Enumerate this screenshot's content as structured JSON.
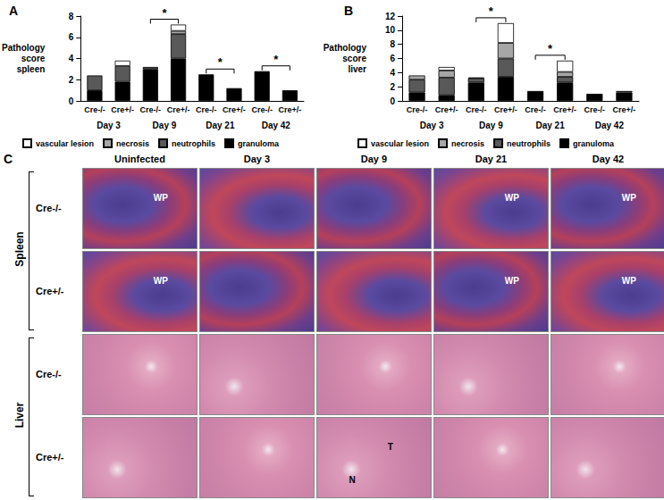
{
  "chart_data": [
    {
      "type": "bar",
      "panel_label": "A",
      "stacked": true,
      "grid": false,
      "legend": "bottom",
      "ylabel": "Pathology score spleen",
      "categories": [
        "Cre-/-",
        "Cre+/-",
        "Cre-/-",
        "Cre+/-",
        "Cre-/-",
        "Cre+/-",
        "Cre-/-",
        "Cre+/-"
      ],
      "groups": [
        "Day 3",
        "Day 9",
        "Day 21",
        "Day 42"
      ],
      "ylim": [
        0,
        8
      ],
      "yticks": [
        0,
        2,
        4,
        6,
        8
      ],
      "series": [
        {
          "name": "granuloma",
          "color": "#000000",
          "values": [
            1.0,
            1.8,
            3.0,
            4.0,
            2.5,
            1.2,
            2.8,
            1.0
          ]
        },
        {
          "name": "neutrophils",
          "color": "#595959",
          "values": [
            1.4,
            1.5,
            0.2,
            2.3,
            0,
            0,
            0,
            0
          ]
        },
        {
          "name": "necrosis",
          "color": "#a6a6a6",
          "values": [
            0,
            0,
            0,
            0.3,
            0,
            0,
            0,
            0
          ]
        },
        {
          "name": "vascular lesion",
          "color": "#ffffff",
          "values": [
            0,
            0.5,
            0,
            0.6,
            0,
            0,
            0,
            0
          ]
        }
      ],
      "significance": [
        {
          "group": "Day 9",
          "label": "*"
        },
        {
          "group": "Day 21",
          "label": "*"
        },
        {
          "group": "Day 42",
          "label": "*"
        }
      ]
    },
    {
      "type": "bar",
      "panel_label": "B",
      "stacked": true,
      "grid": false,
      "legend": "bottom",
      "ylabel": "Pathology score liver",
      "categories": [
        "Cre-/-",
        "Cre+/-",
        "Cre-/-",
        "Cre+/-",
        "Cre-/-",
        "Cre+/-",
        "Cre-/-",
        "Cre+/-"
      ],
      "groups": [
        "Day 3",
        "Day 9",
        "Day 21",
        "Day 42"
      ],
      "ylim": [
        0,
        12
      ],
      "yticks": [
        0,
        2,
        4,
        6,
        8,
        10,
        12
      ],
      "series": [
        {
          "name": "granuloma",
          "color": "#000000",
          "values": [
            1.2,
            0.8,
            2.6,
            3.4,
            1.4,
            2.6,
            1.0,
            1.2
          ]
        },
        {
          "name": "neutrophils",
          "color": "#595959",
          "values": [
            1.8,
            2.5,
            0.6,
            2.6,
            0,
            0.8,
            0,
            0.2
          ]
        },
        {
          "name": "necrosis",
          "color": "#a6a6a6",
          "values": [
            0.6,
            1.0,
            0.1,
            2.2,
            0,
            0.7,
            0,
            0
          ]
        },
        {
          "name": "vascular lesion",
          "color": "#ffffff",
          "values": [
            0,
            0.5,
            0,
            2.8,
            0,
            1.6,
            0,
            0
          ]
        }
      ],
      "significance": [
        {
          "group": "Day 9",
          "label": "*"
        },
        {
          "group": "Day 21",
          "label": "*"
        }
      ]
    }
  ],
  "panel_c": {
    "panel_label": "C",
    "columns": [
      "Uninfected",
      "Day 3",
      "Day 9",
      "Day 21",
      "Day 42"
    ],
    "organs": [
      {
        "name": "Spleen",
        "rows": [
          "Cre-/-",
          "Cre+/-"
        ]
      },
      {
        "name": "Liver",
        "rows": [
          "Cre-/-",
          "Cre+/-"
        ]
      }
    ],
    "annotations": [
      {
        "organ": 0,
        "row": 0,
        "column": 0,
        "text": "WP"
      },
      {
        "organ": 0,
        "row": 0,
        "column": 3,
        "text": "WP"
      },
      {
        "organ": 0,
        "row": 0,
        "column": 4,
        "text": "WP"
      },
      {
        "organ": 0,
        "row": 1,
        "column": 0,
        "text": "WP"
      },
      {
        "organ": 0,
        "row": 1,
        "column": 3,
        "text": "WP"
      },
      {
        "organ": 0,
        "row": 1,
        "column": 4,
        "text": "WP"
      },
      {
        "organ": 1,
        "row": 1,
        "column": 2,
        "text": "T"
      },
      {
        "organ": 1,
        "row": 1,
        "column": 2,
        "text": "N"
      }
    ]
  }
}
